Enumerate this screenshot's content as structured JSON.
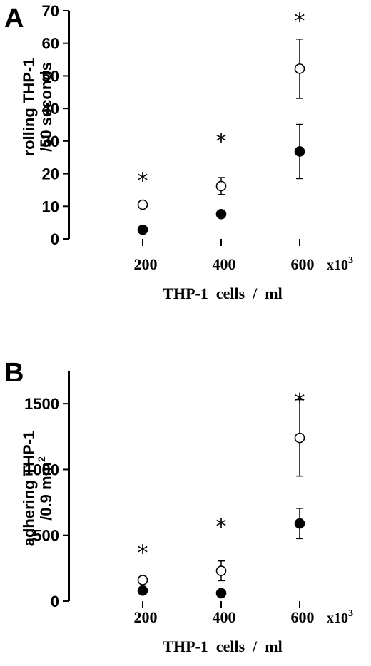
{
  "chart_data": [
    {
      "type": "scatter",
      "panel": "A",
      "xlabel": "THP-1  cells  /  ml",
      "x_unit": "x10",
      "x_unit_exp": "3",
      "ylabel_line1": "rolling THP-1",
      "ylabel_line2": "/50 seconds",
      "categories": [
        "200",
        "400",
        "600"
      ],
      "x": [
        200,
        400,
        600
      ],
      "ylim": [
        0,
        70
      ],
      "yticks": [
        {
          "value": 0,
          "label": "0"
        },
        {
          "value": 10,
          "label": "10"
        },
        {
          "value": 20,
          "label": "20"
        },
        {
          "value": 30,
          "label": "30"
        },
        {
          "value": 40,
          "label": "40"
        },
        {
          "value": 50,
          "label": "50"
        },
        {
          "value": 60,
          "label": "60"
        },
        {
          "value": 70,
          "label": "70"
        }
      ],
      "series": [
        {
          "marker": "open-circle",
          "values": [
            10.5,
            16.2,
            52.2
          ],
          "errors": [
            0.6,
            2.6,
            9.1
          ]
        },
        {
          "marker": "filled-circle",
          "values": [
            2.8,
            7.6,
            26.8
          ],
          "errors": [
            0.4,
            0.6,
            8.3
          ]
        }
      ],
      "annotations": [
        {
          "text": "*",
          "x": 200,
          "y": 20
        },
        {
          "text": "*",
          "x": 400,
          "y": 32
        },
        {
          "text": "*",
          "x": 600,
          "y": 69
        }
      ],
      "grid": false
    },
    {
      "type": "scatter",
      "panel": "B",
      "xlabel": "THP-1  cells  /  ml",
      "x_unit": "x10",
      "x_unit_exp": "3",
      "ylabel_line1": "adhering THP-1",
      "ylabel_line2": "/0.9 mm",
      "ylabel_line2_exp": "2",
      "categories": [
        "200",
        "400",
        "600"
      ],
      "x": [
        200,
        400,
        600
      ],
      "ylim": [
        0,
        1750
      ],
      "yticks": [
        {
          "value": 0,
          "label": "0"
        },
        {
          "value": 500,
          "label": "500"
        },
        {
          "value": 1000,
          "label": "1000"
        },
        {
          "value": 1500,
          "label": "1500"
        }
      ],
      "series": [
        {
          "marker": "open-circle",
          "values": [
            160,
            230,
            1240
          ],
          "errors": [
            20,
            75,
            290
          ]
        },
        {
          "marker": "filled-circle",
          "values": [
            80,
            60,
            590
          ],
          "errors": [
            10,
            10,
            115
          ]
        }
      ],
      "annotations": [
        {
          "text": "*",
          "x": 200,
          "y": 420
        },
        {
          "text": "*",
          "x": 400,
          "y": 620
        },
        {
          "text": "*",
          "x": 600,
          "y": 1570
        }
      ],
      "grid": false
    }
  ]
}
